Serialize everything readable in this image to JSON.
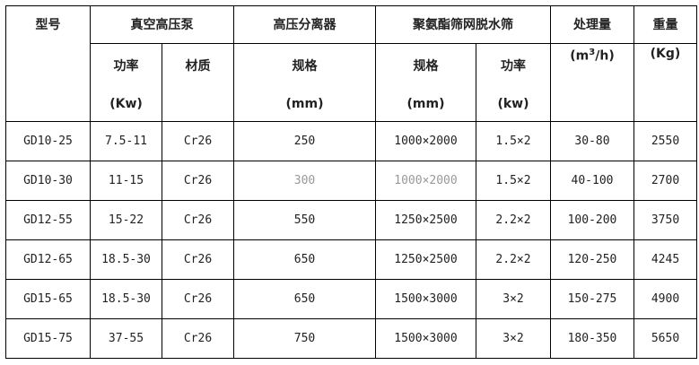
{
  "headers": {
    "model": "型号",
    "pump": "真空高压泵",
    "separator": "高压分离器",
    "screen": "聚氨酯筛网脱水筛",
    "capacity": "处理量",
    "weight": "重量",
    "pump_power": "功率",
    "pump_power_unit": "(Kw)",
    "pump_material": "材质",
    "sep_spec": "规格",
    "sep_spec_unit": "(mm)",
    "screen_spec": "规格",
    "screen_spec_unit": "(mm)",
    "screen_power": "功率",
    "screen_power_unit": "(kw)",
    "capacity_unit_a": "(m",
    "capacity_unit_sup": "3",
    "capacity_unit_b": "/h)",
    "weight_unit": "(Kg)"
  },
  "rows": [
    [
      "GD10-25",
      "7.5-11",
      "Cr26",
      "250",
      "1000×2000",
      "1.5×2",
      "30-80",
      "2550"
    ],
    [
      "GD10-30",
      "11-15",
      "Cr26",
      "300",
      "1000×2000",
      "1.5×2",
      "40-100",
      "2700"
    ],
    [
      "GD12-55",
      "15-22",
      "Cr26",
      "550",
      "1250×2500",
      "2.2×2",
      "100-200",
      "3750"
    ],
    [
      "GD12-65",
      "18.5-30",
      "Cr26",
      "650",
      "1250×2500",
      "2.2×2",
      "120-250",
      "4245"
    ],
    [
      "GD15-65",
      "18.5-30",
      "Cr26",
      "650",
      "1500×3000",
      "3×2",
      "150-275",
      "4900"
    ],
    [
      "GD15-75",
      "37-55",
      "Cr26",
      "750",
      "1500×3000",
      "3×2",
      "180-350",
      "5650"
    ]
  ]
}
